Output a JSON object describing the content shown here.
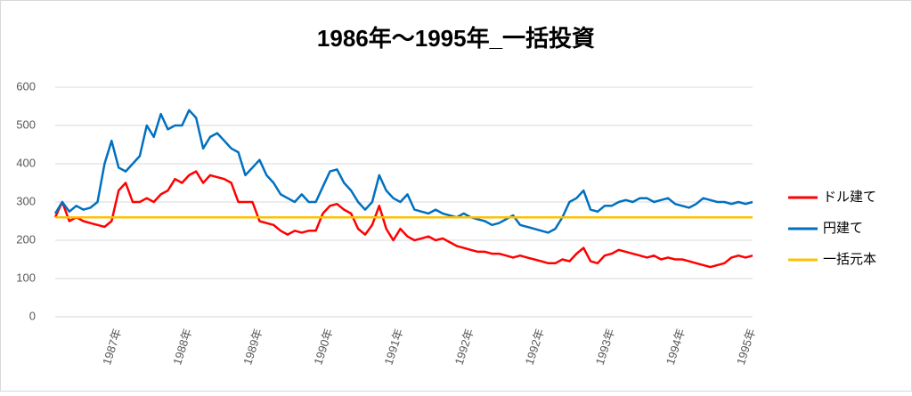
{
  "chart_data": {
    "type": "line",
    "title": "1986年〜1995年_一括投資",
    "categories": [
      null,
      null,
      null,
      null,
      null,
      null,
      null,
      null,
      null,
      "1987年",
      null,
      null,
      null,
      null,
      null,
      null,
      null,
      null,
      null,
      "1988年",
      null,
      null,
      null,
      null,
      null,
      null,
      null,
      null,
      null,
      "1989年",
      null,
      null,
      null,
      null,
      null,
      null,
      null,
      null,
      null,
      "1990年",
      null,
      null,
      null,
      null,
      null,
      null,
      null,
      null,
      null,
      "1991年",
      null,
      null,
      null,
      null,
      null,
      null,
      null,
      null,
      null,
      "1992年",
      null,
      null,
      null,
      null,
      null,
      null,
      null,
      null,
      null,
      "1992年",
      null,
      null,
      null,
      null,
      null,
      null,
      null,
      null,
      null,
      "1993年",
      null,
      null,
      null,
      null,
      null,
      null,
      null,
      null,
      null,
      "1994年",
      null,
      null,
      null,
      null,
      null,
      null,
      null,
      null,
      null,
      "1995年"
    ],
    "series": [
      {
        "name": "ドル建て",
        "color": "#ff0000",
        "values": [
          260,
          300,
          250,
          260,
          250,
          245,
          240,
          235,
          250,
          330,
          350,
          300,
          300,
          310,
          300,
          320,
          330,
          360,
          350,
          370,
          380,
          350,
          370,
          365,
          360,
          350,
          300,
          300,
          300,
          250,
          245,
          240,
          225,
          215,
          225,
          220,
          225,
          225,
          270,
          290,
          295,
          280,
          270,
          230,
          215,
          240,
          290,
          230,
          200,
          230,
          210,
          200,
          205,
          210,
          200,
          205,
          195,
          185,
          180,
          175,
          170,
          170,
          165,
          165,
          160,
          155,
          160,
          155,
          150,
          145,
          140,
          140,
          150,
          145,
          165,
          180,
          145,
          140,
          160,
          165,
          175,
          170,
          165,
          160,
          155,
          160,
          150,
          155,
          150,
          150,
          145,
          140,
          135,
          130,
          135,
          140,
          155,
          160,
          155,
          160
        ]
      },
      {
        "name": "円建て",
        "color": "#0070c0",
        "values": [
          270,
          300,
          275,
          290,
          280,
          285,
          300,
          400,
          460,
          390,
          380,
          400,
          420,
          500,
          470,
          530,
          490,
          500,
          500,
          540,
          520,
          440,
          470,
          480,
          460,
          440,
          430,
          370,
          390,
          410,
          370,
          350,
          320,
          310,
          300,
          320,
          300,
          300,
          340,
          380,
          385,
          350,
          330,
          300,
          280,
          300,
          370,
          330,
          310,
          300,
          320,
          280,
          275,
          270,
          280,
          270,
          265,
          260,
          270,
          260,
          255,
          250,
          240,
          245,
          255,
          265,
          240,
          235,
          230,
          225,
          220,
          230,
          260,
          300,
          310,
          330,
          280,
          275,
          290,
          290,
          300,
          305,
          300,
          310,
          310,
          300,
          305,
          310,
          295,
          290,
          285,
          295,
          310,
          305,
          300,
          300,
          295,
          300,
          295,
          300
        ]
      },
      {
        "name": "一括元本",
        "color": "#ffc000",
        "values": [
          260,
          260,
          260,
          260,
          260,
          260,
          260,
          260,
          260,
          260,
          260,
          260,
          260,
          260,
          260,
          260,
          260,
          260,
          260,
          260,
          260,
          260,
          260,
          260,
          260,
          260,
          260,
          260,
          260,
          260,
          260,
          260,
          260,
          260,
          260,
          260,
          260,
          260,
          260,
          260,
          260,
          260,
          260,
          260,
          260,
          260,
          260,
          260,
          260,
          260,
          260,
          260,
          260,
          260,
          260,
          260,
          260,
          260,
          260,
          260,
          260,
          260,
          260,
          260,
          260,
          260,
          260,
          260,
          260,
          260,
          260,
          260,
          260,
          260,
          260,
          260,
          260,
          260,
          260,
          260,
          260,
          260,
          260,
          260,
          260,
          260,
          260,
          260,
          260,
          260,
          260,
          260,
          260,
          260,
          260,
          260,
          260,
          260,
          260,
          260
        ]
      }
    ],
    "ylim": [
      0,
      600
    ],
    "yticks": [
      0,
      100,
      200,
      300,
      400,
      500,
      600
    ],
    "grid": true,
    "legend": "right"
  }
}
